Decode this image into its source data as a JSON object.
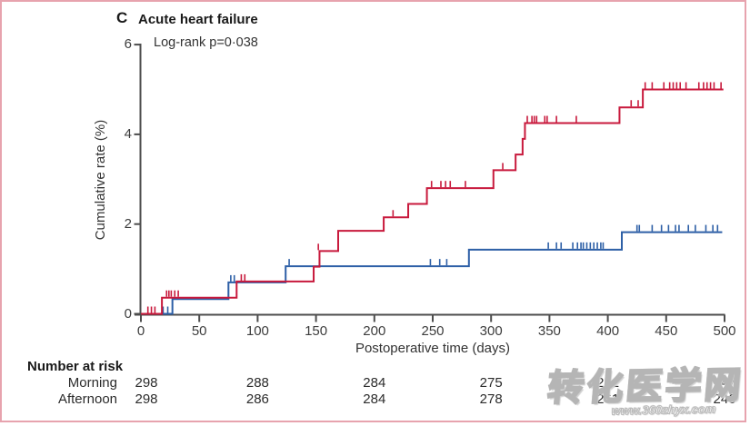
{
  "figure": {
    "panel_label": "C",
    "title": "Acute heart failure",
    "annotation": "Log-rank p=0·038"
  },
  "chart_data": {
    "type": "line",
    "subtype": "kaplan-meier-step",
    "title": "Acute heart failure",
    "annotation": "Log-rank p=0·038",
    "xlabel": "Postoperative time (days)",
    "ylabel": "Cumulative rate (%)",
    "xlim": [
      0,
      500
    ],
    "ylim": [
      0,
      6
    ],
    "x_ticks": [
      0,
      50,
      100,
      150,
      200,
      250,
      300,
      350,
      400,
      450,
      500
    ],
    "y_ticks": [
      0,
      2,
      4,
      6
    ],
    "grid": false,
    "legend_position": "none",
    "series": [
      {
        "name": "Afternoon",
        "color": "#2d5fa6",
        "steps": [
          [
            0,
            0
          ],
          [
            27,
            0.33
          ],
          [
            75,
            0.7
          ],
          [
            124,
            1.06
          ],
          [
            281,
            1.43
          ],
          [
            412,
            1.82
          ],
          [
            498,
            1.82
          ]
        ],
        "censor_marks": [
          [
            19,
            0
          ],
          [
            23,
            0
          ],
          [
            77,
            0.7
          ],
          [
            80,
            0.7
          ],
          [
            127,
            1.06
          ],
          [
            248,
            1.06
          ],
          [
            256,
            1.06
          ],
          [
            262,
            1.06
          ],
          [
            349,
            1.43
          ],
          [
            356,
            1.43
          ],
          [
            360,
            1.43
          ],
          [
            370,
            1.43
          ],
          [
            374,
            1.43
          ],
          [
            377,
            1.43
          ],
          [
            379,
            1.43
          ],
          [
            382,
            1.43
          ],
          [
            385,
            1.43
          ],
          [
            388,
            1.43
          ],
          [
            391,
            1.43
          ],
          [
            394,
            1.43
          ],
          [
            396,
            1.43
          ],
          [
            425,
            1.82
          ],
          [
            427,
            1.82
          ],
          [
            438,
            1.82
          ],
          [
            446,
            1.82
          ],
          [
            452,
            1.82
          ],
          [
            458,
            1.82
          ],
          [
            461,
            1.82
          ],
          [
            469,
            1.82
          ],
          [
            475,
            1.82
          ],
          [
            484,
            1.82
          ],
          [
            490,
            1.82
          ],
          [
            494,
            1.82
          ]
        ]
      },
      {
        "name": "Morning",
        "color": "#c8193c",
        "steps": [
          [
            0,
            0
          ],
          [
            18,
            0.36
          ],
          [
            82,
            0.72
          ],
          [
            148,
            1.05
          ],
          [
            153,
            1.4
          ],
          [
            169,
            1.85
          ],
          [
            208,
            2.15
          ],
          [
            229,
            2.45
          ],
          [
            245,
            2.8
          ],
          [
            302,
            3.2
          ],
          [
            321,
            3.55
          ],
          [
            327,
            3.9
          ],
          [
            329,
            4.25
          ],
          [
            410,
            4.6
          ],
          [
            430,
            5.0
          ],
          [
            499,
            5.0
          ]
        ],
        "censor_marks": [
          [
            6,
            0
          ],
          [
            9,
            0
          ],
          [
            12,
            0
          ],
          [
            22,
            0.36
          ],
          [
            24,
            0.36
          ],
          [
            26,
            0.36
          ],
          [
            29,
            0.36
          ],
          [
            32,
            0.36
          ],
          [
            86,
            0.72
          ],
          [
            89,
            0.72
          ],
          [
            152,
            1.4
          ],
          [
            216,
            2.15
          ],
          [
            249,
            2.8
          ],
          [
            257,
            2.8
          ],
          [
            261,
            2.8
          ],
          [
            265,
            2.8
          ],
          [
            278,
            2.8
          ],
          [
            310,
            3.2
          ],
          [
            331,
            4.25
          ],
          [
            335,
            4.25
          ],
          [
            337,
            4.25
          ],
          [
            339,
            4.25
          ],
          [
            346,
            4.25
          ],
          [
            348,
            4.25
          ],
          [
            356,
            4.25
          ],
          [
            373,
            4.25
          ],
          [
            420,
            4.6
          ],
          [
            426,
            4.6
          ],
          [
            432,
            5.0
          ],
          [
            438,
            5.0
          ],
          [
            448,
            5.0
          ],
          [
            453,
            5.0
          ],
          [
            456,
            5.0
          ],
          [
            459,
            5.0
          ],
          [
            462,
            5.0
          ],
          [
            467,
            5.0
          ],
          [
            478,
            5.0
          ],
          [
            482,
            5.0
          ],
          [
            485,
            5.0
          ],
          [
            488,
            5.0
          ],
          [
            491,
            5.0
          ],
          [
            497,
            5.0
          ]
        ]
      }
    ]
  },
  "risk_table": {
    "heading": "Number at risk",
    "columns_days": [
      0,
      100,
      200,
      300,
      400,
      500
    ],
    "rows": [
      {
        "label": "Morning",
        "values": [
          298,
          288,
          284,
          275,
          262,
          247
        ]
      },
      {
        "label": "Afternoon",
        "values": [
          298,
          286,
          284,
          278,
          261,
          246
        ]
      }
    ]
  },
  "watermark": {
    "text": "转化医学网",
    "url": "www.360zhyx.com"
  },
  "colors": {
    "morning_red": "#c8193c",
    "afternoon_blue": "#2d5fa6",
    "axis": "#4d4d4d",
    "border_pink": "#e7a3ae"
  }
}
